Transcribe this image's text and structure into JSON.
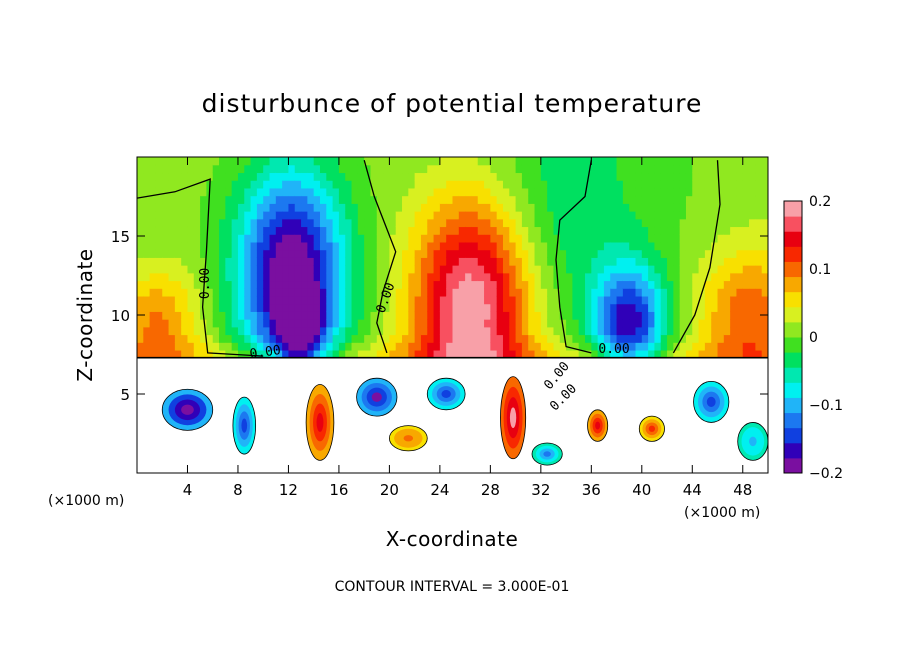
{
  "chart_data": {
    "type": "heatmap",
    "title": "disturbunce of potential temperature",
    "xlabel": "X-coordinate",
    "ylabel": "Z-coordinate",
    "x_unit_left": "(×1000 m)",
    "x_unit_right": "(×1000 m)",
    "xlim": [
      0,
      50
    ],
    "ylim": [
      0,
      20
    ],
    "xticks": [
      4,
      8,
      12,
      16,
      20,
      24,
      28,
      32,
      36,
      40,
      44,
      48
    ],
    "yticks": [
      5,
      10,
      15
    ],
    "colorbar": {
      "range": [
        -0.2,
        0.2
      ],
      "ticks": [
        {
          "value": 0.2,
          "label": "0.2"
        },
        {
          "value": 0.1,
          "label": "0.1"
        },
        {
          "value": 0.0,
          "label": "0"
        },
        {
          "value": -0.1,
          "label": "−0.1"
        },
        {
          "value": -0.2,
          "label": "−0.2"
        }
      ],
      "colors": [
        "#7a0fa0",
        "#3000b8",
        "#1040e0",
        "#1c78f0",
        "#20b4f8",
        "#00f0f0",
        "#00e8b0",
        "#00e060",
        "#40e020",
        "#90e820",
        "#d8f020",
        "#f8e000",
        "#f8a800",
        "#f86800",
        "#f82800",
        "#e80010",
        "#f85060",
        "#f8a0a8"
      ]
    },
    "contour_labels": [
      "0.00",
      "0.00",
      "0.00",
      "0.00",
      "0.00",
      "0.00"
    ],
    "contour_interval_text": "CONTOUR INTERVAL = 3.000E-01",
    "anomalies": [
      {
        "x": 12.2,
        "z": 12.5,
        "sx": 3.0,
        "sz": 4.8,
        "v": -0.22
      },
      {
        "x": 13.0,
        "z": 9.0,
        "sx": 1.2,
        "sz": 1.8,
        "v": -0.12
      },
      {
        "x": 26.5,
        "z": 10.5,
        "sx": 3.4,
        "sz": 5.0,
        "v": 0.2
      },
      {
        "x": 39.0,
        "z": 9.5,
        "sx": 2.0,
        "sz": 2.6,
        "v": -0.17
      },
      {
        "x": 1.5,
        "z": 9.5,
        "sx": 2.5,
        "sz": 2.5,
        "v": 0.09
      },
      {
        "x": 48.5,
        "z": 10.0,
        "sx": 3.0,
        "sz": 3.0,
        "v": 0.1
      },
      {
        "x": 34.0,
        "z": 16.0,
        "sx": 3.5,
        "sz": 4.0,
        "v": -0.03
      }
    ],
    "lower_layer": {
      "z_top": 7.3,
      "blobs": [
        {
          "x": 4.0,
          "z": 4.0,
          "rx": 2.0,
          "rz": 1.3,
          "v": -0.2
        },
        {
          "x": 8.5,
          "z": 3.0,
          "rx": 0.9,
          "rz": 1.8,
          "v": -0.15
        },
        {
          "x": 14.5,
          "z": 3.2,
          "rx": 1.1,
          "rz": 2.4,
          "v": 0.15
        },
        {
          "x": 19.0,
          "z": 4.8,
          "rx": 1.6,
          "rz": 1.2,
          "v": -0.18
        },
        {
          "x": 21.5,
          "z": 2.2,
          "rx": 1.5,
          "rz": 0.8,
          "v": 0.1
        },
        {
          "x": 24.5,
          "z": 5.0,
          "rx": 1.5,
          "rz": 1.0,
          "v": -0.15
        },
        {
          "x": 29.8,
          "z": 3.5,
          "rx": 1.0,
          "rz": 2.6,
          "v": 0.18
        },
        {
          "x": 32.5,
          "z": 1.2,
          "rx": 1.2,
          "rz": 0.7,
          "v": -0.12
        },
        {
          "x": 36.5,
          "z": 3.0,
          "rx": 0.8,
          "rz": 1.0,
          "v": 0.15
        },
        {
          "x": 40.8,
          "z": 2.8,
          "rx": 1.0,
          "rz": 0.8,
          "v": 0.12
        },
        {
          "x": 45.5,
          "z": 4.5,
          "rx": 1.4,
          "rz": 1.3,
          "v": -0.15
        },
        {
          "x": 48.8,
          "z": 2.0,
          "rx": 1.2,
          "rz": 1.2,
          "v": -0.1
        }
      ]
    }
  }
}
